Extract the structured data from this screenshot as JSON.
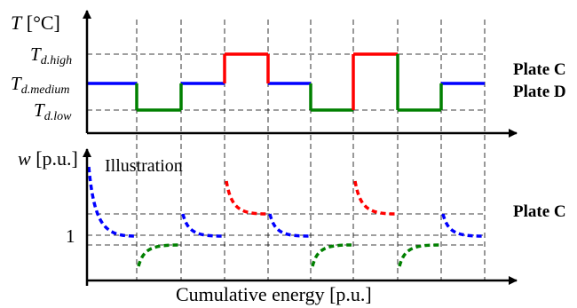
{
  "top_panel": {
    "y_axis_label_var": "T",
    "y_axis_label_unit": " [°C]",
    "level_labels": {
      "high": {
        "base": "T",
        "sub": "d.high"
      },
      "medium": {
        "base": "T",
        "sub": "d.medium"
      },
      "low": {
        "base": "T",
        "sub": "d.low"
      }
    },
    "right_labels": [
      "Plate C",
      "Plate D"
    ],
    "colors": {
      "medium": "#0000ff",
      "high": "#ff0000",
      "low": "#008000"
    },
    "sequence": [
      "medium",
      "low",
      "medium",
      "high",
      "medium",
      "low",
      "high",
      "low",
      "medium"
    ]
  },
  "bottom_panel": {
    "y_axis_label_var": "w",
    "y_axis_label_unit": " [p.u.]",
    "illustration": "Illustration",
    "tick_one": "1",
    "right_label": "Plate C",
    "x_axis_label": "Cumulative energy [p.u.]"
  }
}
